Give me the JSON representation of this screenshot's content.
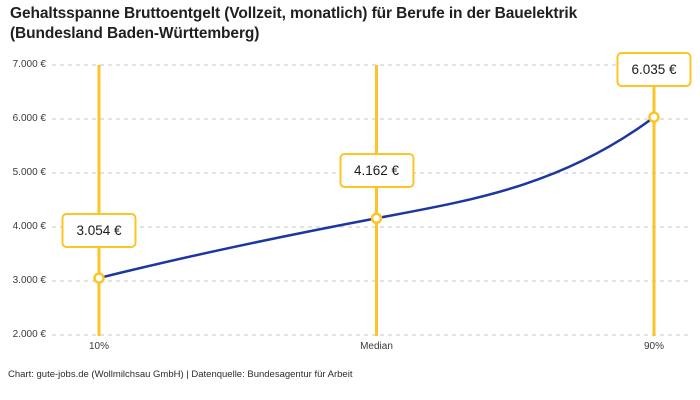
{
  "title": "Gehaltsspanne Bruttoentgelt (Vollzeit, monatlich) für Berufe in der Bauelektrik (Bundesland Baden-Württemberg)",
  "footer": "Chart: gute-jobs.de (Wollmilchsau GmbH) | Datenquelle: Bundesagentur für Arbeit",
  "colors": {
    "accent_yellow": "#fdc428",
    "line_blue": "#1e36a0",
    "grid_gray": "#c6c6c6",
    "text_dark": "#1c1c1c"
  },
  "chart_data": {
    "type": "line",
    "title": "Gehaltsspanne Bruttoentgelt (Vollzeit, monatlich) für Berufe in der Bauelektrik (Bundesland Baden-Württemberg)",
    "categories": [
      "10%",
      "Median",
      "90%"
    ],
    "values": [
      3054,
      4162,
      6035
    ],
    "value_labels": [
      "3.054 €",
      "4.162 €",
      "6.035 €"
    ],
    "y_ticks": [
      7000,
      6000,
      5000,
      4000,
      3000,
      2000
    ],
    "y_tick_labels": [
      "7.000 €",
      "6.000 €",
      "5.000 €",
      "4.000 €",
      "3.000 €",
      "2.000 €"
    ],
    "ylim": [
      2000,
      7000
    ],
    "xlabel": "",
    "ylabel": "",
    "grid": "horizontal-dashed",
    "legend": "none",
    "annotation_style": "vertical guide line with callout box at each percentile"
  }
}
